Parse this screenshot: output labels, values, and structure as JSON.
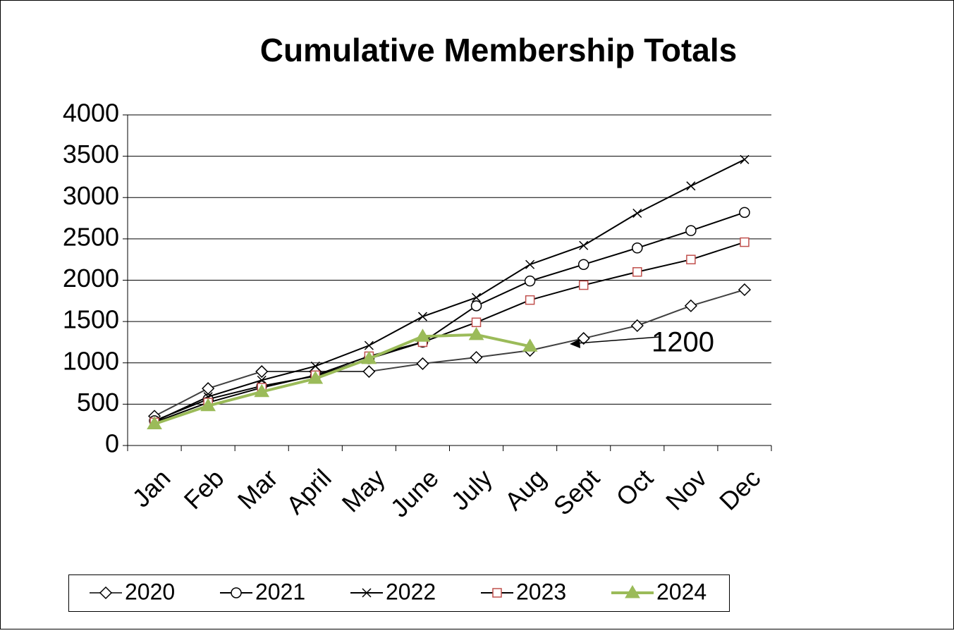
{
  "chart_data": {
    "type": "line",
    "title": "Cumulative Membership Totals",
    "categories": [
      "Jan",
      "Feb",
      "Mar",
      "April",
      "May",
      "June",
      "July",
      "Aug",
      "Sept",
      "Oct",
      "Nov",
      "Dec"
    ],
    "series": [
      {
        "name": "2020",
        "color": "#404040",
        "marker": "diamond",
        "marker_color": "#000000",
        "values": [
          355,
          690,
          895,
          895,
          895,
          990,
          1066,
          1150,
          1296,
          1450,
          1690,
          1885
        ]
      },
      {
        "name": "2021",
        "color": "#000000",
        "marker": "circle",
        "marker_color": "#000000",
        "values": [
          300,
          560,
          720,
          840,
          1050,
          1250,
          1690,
          1990,
          2190,
          2390,
          2600,
          2820
        ]
      },
      {
        "name": "2022",
        "color": "#000000",
        "marker": "x",
        "marker_color": "#000000",
        "values": [
          290,
          590,
          790,
          960,
          1210,
          1560,
          1790,
          2190,
          2420,
          2810,
          3140,
          3460
        ]
      },
      {
        "name": "2023",
        "color": "#000000",
        "marker": "square",
        "marker_color": "#c0504d",
        "values": [
          280,
          520,
          700,
          850,
          1080,
          1250,
          1490,
          1760,
          1940,
          2100,
          2250,
          2460
        ]
      },
      {
        "name": "2024",
        "color": "#9bbb59",
        "marker": "triangle",
        "marker_color": "#9bbb59",
        "values": [
          260,
          480,
          650,
          810,
          1050,
          1320,
          1340,
          1200,
          null,
          null,
          null,
          null
        ]
      }
    ],
    "ylim": [
      0,
      4000
    ],
    "yticks": [
      0,
      500,
      1000,
      1500,
      2000,
      2500,
      3000,
      3500,
      4000
    ],
    "grid": true,
    "legend": "bottom",
    "annotations": [
      {
        "text": "1200"
      }
    ]
  }
}
